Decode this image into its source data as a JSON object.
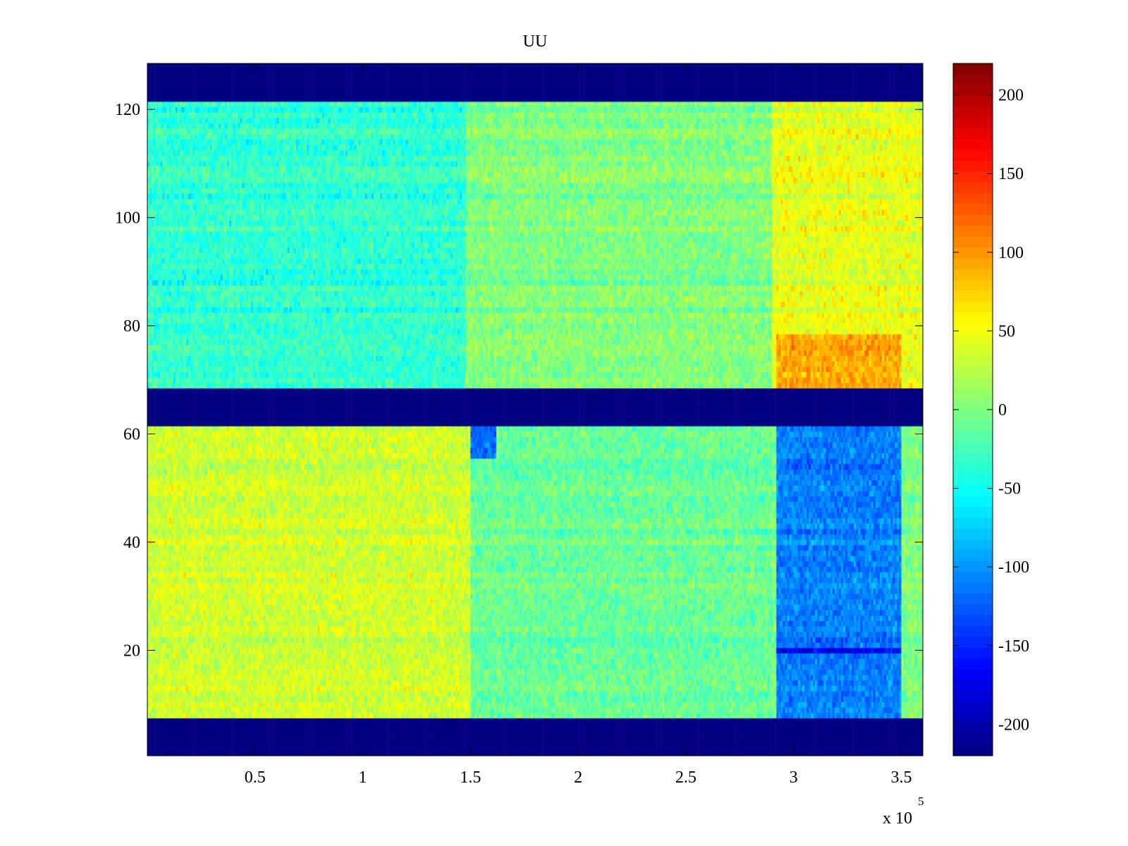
{
  "chart_data": {
    "type": "heatmap",
    "title": "UU",
    "xlabel": "",
    "ylabel": "",
    "x_exponent_label": "x 10",
    "x_exponent": "5",
    "xlim": [
      0,
      3.6
    ],
    "ylim": [
      0.5,
      128.5
    ],
    "x_ticks": [
      0.5,
      1,
      1.5,
      2,
      2.5,
      3,
      3.5
    ],
    "x_tick_labels": [
      "0.5",
      "1",
      "1.5",
      "2",
      "2.5",
      "3",
      "3.5"
    ],
    "y_ticks": [
      20,
      40,
      60,
      80,
      100,
      120
    ],
    "y_tick_labels": [
      "20",
      "40",
      "60",
      "80",
      "100",
      "120"
    ],
    "colormap": "jet",
    "clim": [
      -220,
      220
    ],
    "colorbar_ticks": [
      200,
      150,
      100,
      50,
      0,
      -50,
      -100,
      -150,
      -200
    ],
    "colorbar_tick_labels": [
      "200",
      "150",
      "100",
      "50",
      "0",
      "-50",
      "-100",
      "-150",
      "-200"
    ],
    "masked_row_bands": [
      [
        1,
        7
      ],
      [
        62,
        68
      ],
      [
        122,
        128
      ]
    ],
    "masked_value": -220,
    "regions_approx": [
      {
        "rows": [
          69,
          121
        ],
        "x": [
          0,
          1.48
        ],
        "mean": -35
      },
      {
        "rows": [
          69,
          121
        ],
        "x": [
          1.48,
          2.9
        ],
        "mean": 0
      },
      {
        "rows": [
          69,
          121
        ],
        "x": [
          2.9,
          3.6
        ],
        "mean": 45
      },
      {
        "rows": [
          69,
          78
        ],
        "x": [
          2.92,
          3.5
        ],
        "mean": 90
      },
      {
        "rows": [
          8,
          61
        ],
        "x": [
          0,
          1.5
        ],
        "mean": 35
      },
      {
        "rows": [
          8,
          61
        ],
        "x": [
          1.5,
          2.9
        ],
        "mean": -10
      },
      {
        "rows": [
          8,
          61
        ],
        "x": [
          2.92,
          3.5
        ],
        "mean": -110
      },
      {
        "rows": [
          20,
          20
        ],
        "x": [
          2.92,
          3.5
        ],
        "mean": -170
      },
      {
        "rows": [
          56,
          61
        ],
        "x": [
          1.5,
          1.62
        ],
        "mean": -120
      }
    ],
    "grid": false,
    "legend": "none"
  }
}
